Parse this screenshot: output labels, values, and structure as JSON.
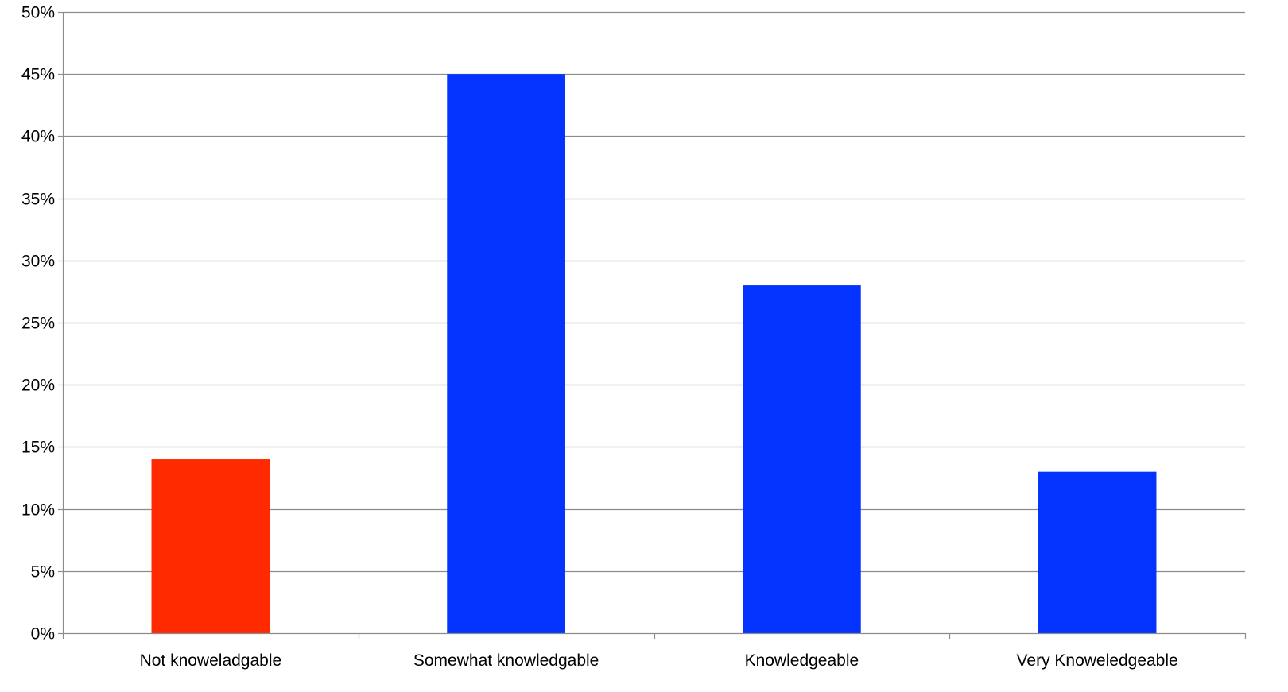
{
  "chart_data": {
    "type": "bar",
    "categories": [
      "Not knoweladgable",
      "Somewhat knowledgable",
      "Knowledgeable",
      "Very Knoweledgeable"
    ],
    "values": [
      14,
      45,
      28,
      13
    ],
    "bar_colors": [
      "#FF2A00",
      "#0433FF",
      "#0433FF",
      "#0433FF"
    ],
    "ylim": [
      0,
      50
    ],
    "yticks": [
      0,
      5,
      10,
      15,
      20,
      25,
      30,
      35,
      40,
      45,
      50
    ],
    "ytick_format": "percent",
    "grid": true,
    "title": "",
    "xlabel": "",
    "ylabel": ""
  }
}
